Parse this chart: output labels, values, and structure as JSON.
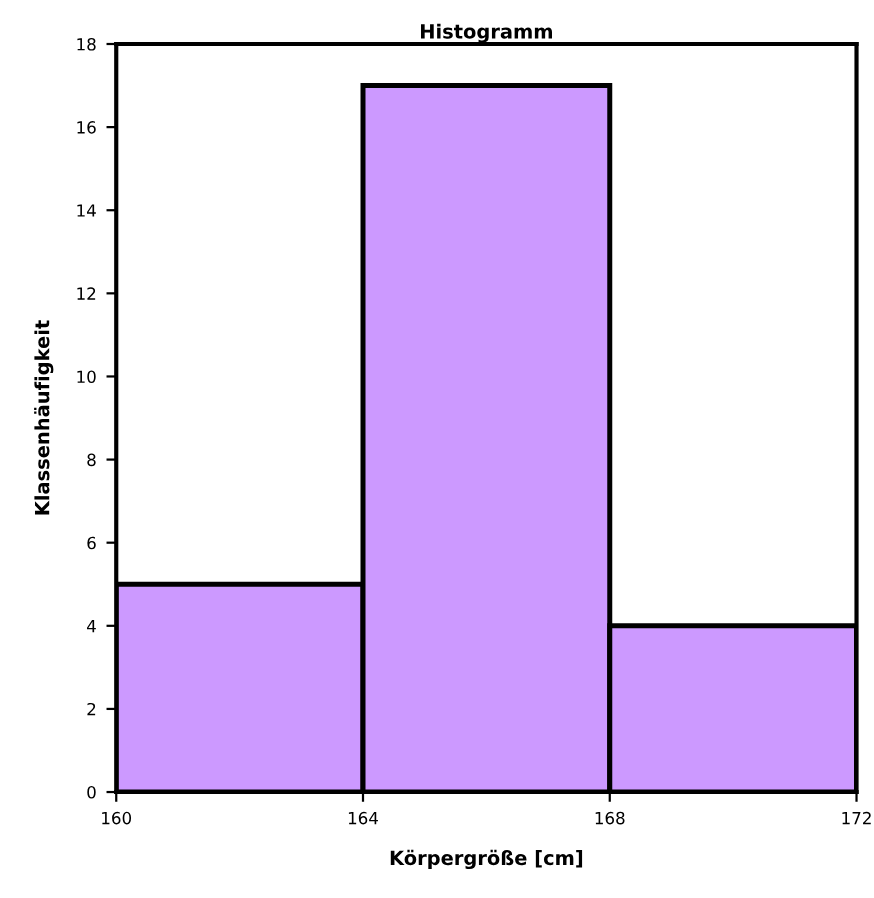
{
  "chart_data": {
    "type": "histogram",
    "title": "Histogramm",
    "xlabel": "Körpergröße [cm]",
    "ylabel": "Klassenhäufigkeit",
    "bins": [
      160,
      164,
      168,
      172
    ],
    "values": [
      5,
      17,
      4
    ],
    "color": "#cc99ff",
    "xlim": [
      160,
      172
    ],
    "xticks": [
      160,
      164,
      168,
      172
    ],
    "ylim": [
      0,
      18
    ],
    "yticks": [
      0,
      2,
      4,
      6,
      8,
      10,
      12,
      14,
      16,
      18
    ],
    "grid": false,
    "legend": false
  }
}
